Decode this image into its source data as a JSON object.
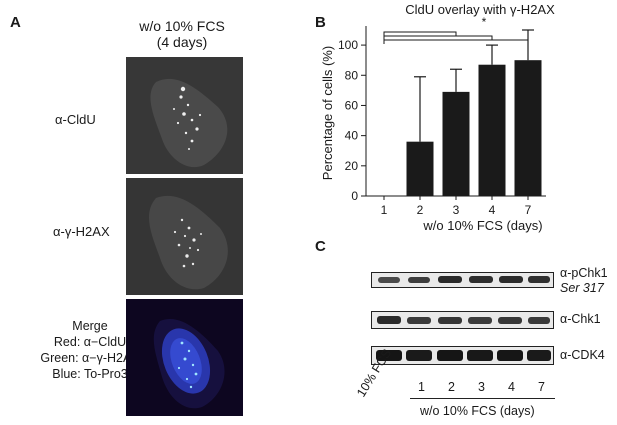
{
  "panel_a": {
    "letter": "A",
    "condition_line1": "w/o 10% FCS",
    "condition_line2": "(4 days)",
    "row_labels": [
      "α-CldU",
      "α-γ-H2AX"
    ],
    "merge_lines": [
      "Merge",
      "Red: α−CldU",
      "Green: α−γ-H2AX",
      "Blue: To-Pro3"
    ]
  },
  "panel_b": {
    "letter": "B",
    "significance_marker": "*"
  },
  "chart_data": {
    "type": "bar",
    "title": "CldU overlay with γ-H2AX",
    "xlabel": "w/o 10% FCS (days)",
    "ylabel": "Percentage of cells (%)",
    "categories": [
      "1",
      "2",
      "3",
      "4",
      "7"
    ],
    "values": [
      0,
      36,
      69,
      87,
      90
    ],
    "error": [
      0,
      43,
      15,
      13,
      20
    ],
    "ylim": [
      0,
      110
    ],
    "yticks": [
      0,
      20,
      40,
      60,
      80,
      100
    ],
    "bar_color": "#1a1a1a"
  },
  "panel_c": {
    "letter": "C",
    "blots": [
      {
        "label": "α-pChk1",
        "sublabel": "Ser 317"
      },
      {
        "label": "α-Chk1",
        "sublabel": ""
      },
      {
        "label": "α-CDK4",
        "sublabel": ""
      }
    ],
    "control_lane": "10% FCS",
    "lane_labels": [
      "1",
      "2",
      "3",
      "4",
      "7"
    ],
    "group_label": "w/o 10% FCS (days)"
  }
}
